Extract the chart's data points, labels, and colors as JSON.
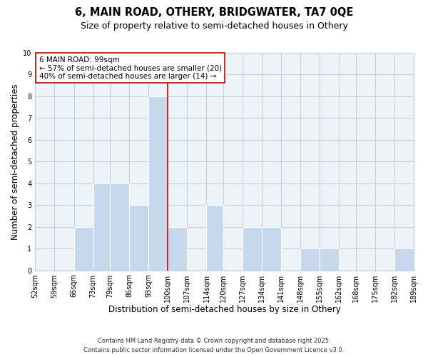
{
  "title": "6, MAIN ROAD, OTHERY, BRIDGWATER, TA7 0QE",
  "subtitle": "Size of property relative to semi-detached houses in Othery",
  "xlabel": "Distribution of semi-detached houses by size in Othery",
  "ylabel": "Number of semi-detached properties",
  "bin_labels": [
    "52sqm",
    "59sqm",
    "66sqm",
    "73sqm",
    "79sqm",
    "86sqm",
    "93sqm",
    "100sqm",
    "107sqm",
    "114sqm",
    "120sqm",
    "127sqm",
    "134sqm",
    "141sqm",
    "148sqm",
    "155sqm",
    "162sqm",
    "168sqm",
    "175sqm",
    "182sqm",
    "189sqm"
  ],
  "bin_edges": [
    52,
    59,
    66,
    73,
    79,
    86,
    93,
    100,
    107,
    114,
    120,
    127,
    134,
    141,
    148,
    155,
    162,
    168,
    175,
    182,
    189
  ],
  "counts": [
    0,
    0,
    2,
    4,
    4,
    3,
    8,
    2,
    0,
    3,
    0,
    2,
    2,
    0,
    1,
    1,
    0,
    0,
    0,
    1,
    0
  ],
  "bar_color": "#c6d9ec",
  "bar_edge_color": "#ffffff",
  "grid_color": "#c0d0e0",
  "bg_color": "#ffffff",
  "plot_bg_color": "#eef3f8",
  "vline_x": 100,
  "vline_color": "#cc0000",
  "annotation_line1": "6 MAIN ROAD: 99sqm",
  "annotation_line2": "← 57% of semi-detached houses are smaller (20)",
  "annotation_line3": "40% of semi-detached houses are larger (14) →",
  "annotation_box_color": "#ffffff",
  "annotation_box_edge": "#cc0000",
  "ylim": [
    0,
    10
  ],
  "yticks": [
    0,
    1,
    2,
    3,
    4,
    5,
    6,
    7,
    8,
    9,
    10
  ],
  "footer_line1": "Contains HM Land Registry data © Crown copyright and database right 2025.",
  "footer_line2": "Contains public sector information licensed under the Open Government Licence v3.0.",
  "title_fontsize": 10.5,
  "subtitle_fontsize": 9,
  "axis_label_fontsize": 8.5,
  "tick_fontsize": 7,
  "annotation_fontsize": 7.5,
  "footer_fontsize": 6
}
